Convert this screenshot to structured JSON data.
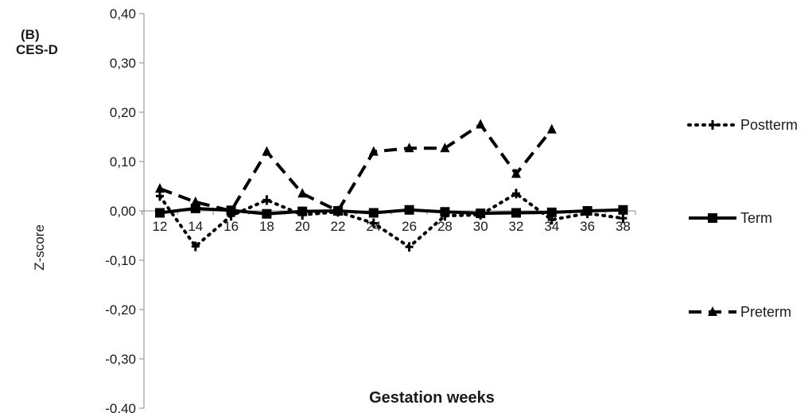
{
  "panel": {
    "letter": "(B)",
    "measure": "CES-D"
  },
  "chart_data": {
    "type": "line",
    "xlabel": "Gestation weeks",
    "ylabel": "Z-score",
    "x": [
      12,
      14,
      16,
      18,
      20,
      22,
      24,
      26,
      28,
      30,
      32,
      34,
      36,
      38
    ],
    "ylim": [
      -0.4,
      0.4
    ],
    "yticks": [
      "-0,40",
      "-0,30",
      "-0,20",
      "-0,10",
      "0,00",
      "0,10",
      "0,20",
      "0,30",
      "0,40"
    ],
    "xticks": [
      "12",
      "14",
      "16",
      "18",
      "20",
      "22",
      "24",
      "26",
      "28",
      "30",
      "32",
      "34",
      "36",
      "38"
    ],
    "grid": false,
    "legend_position": "right",
    "series": [
      {
        "name": "Postterm",
        "style": "dotted",
        "marker": "plus",
        "values": [
          0.03,
          -0.072,
          -0.01,
          0.022,
          -0.008,
          -0.002,
          -0.025,
          -0.073,
          -0.01,
          -0.008,
          0.035,
          -0.018,
          -0.005,
          -0.015
        ]
      },
      {
        "name": "Term",
        "style": "solid",
        "marker": "square",
        "values": [
          -0.004,
          0.005,
          0.001,
          -0.006,
          -0.001,
          0.0,
          -0.004,
          0.002,
          -0.002,
          -0.005,
          -0.004,
          -0.003,
          0.0,
          0.002
        ]
      },
      {
        "name": "Preterm",
        "style": "dashed",
        "marker": "triangle",
        "values": [
          0.045,
          0.018,
          0.0,
          0.12,
          0.035,
          0.0,
          0.12,
          0.127,
          0.127,
          0.175,
          0.075,
          0.165,
          null,
          null
        ]
      }
    ]
  }
}
